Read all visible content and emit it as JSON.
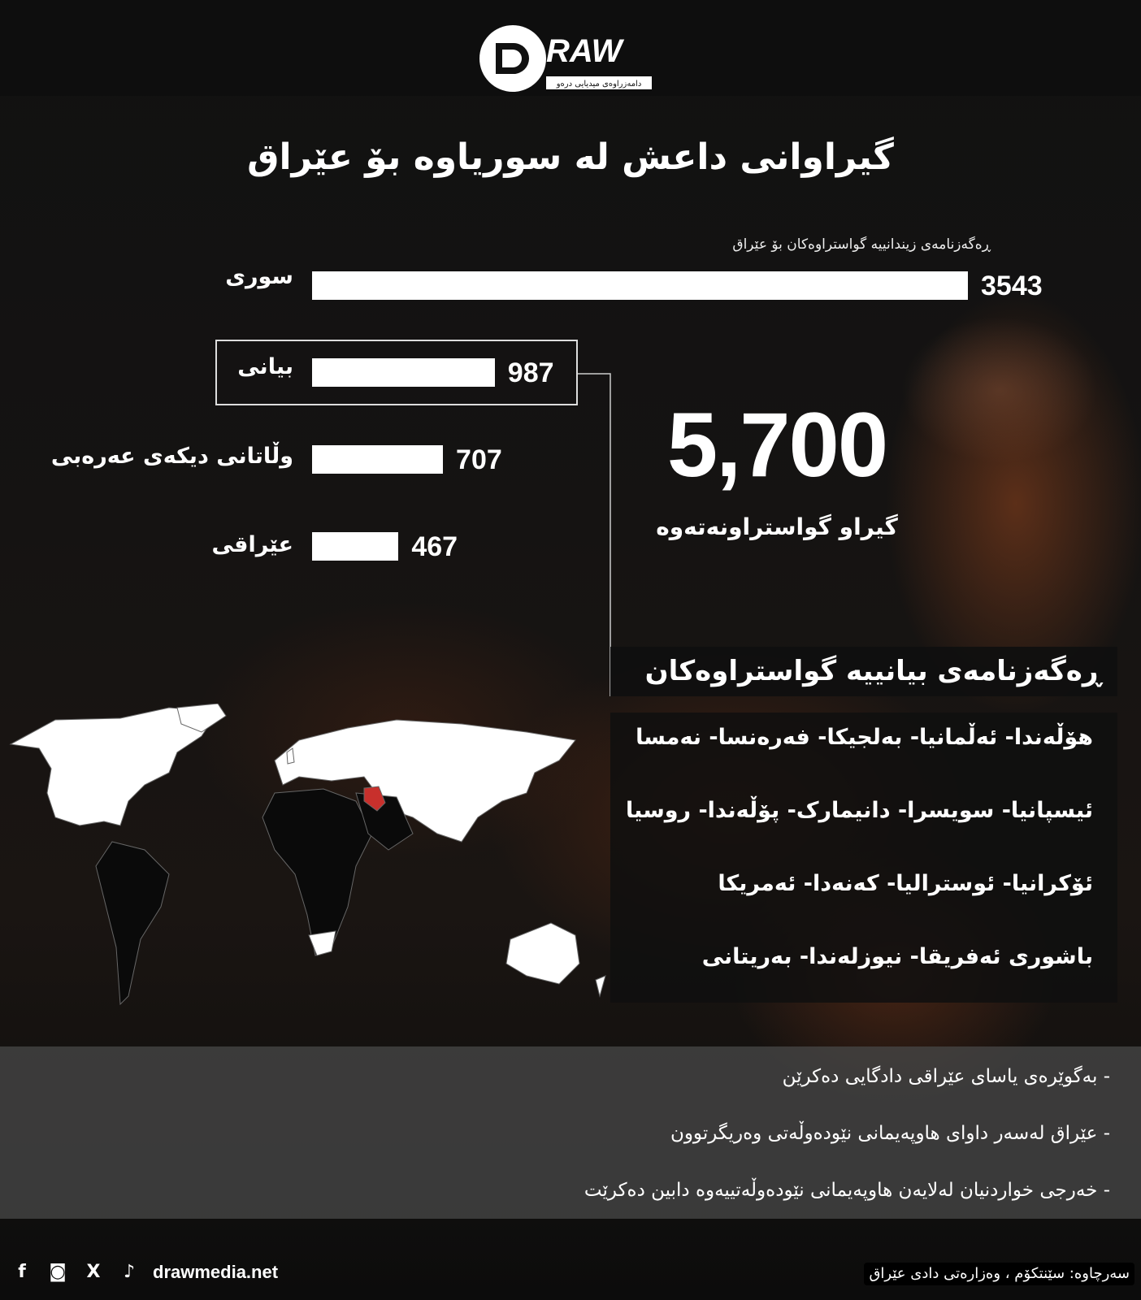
{
  "brand": {
    "logo_text": "DRAW",
    "logo_tagline": "دامەزراوەی میدیایی درەو"
  },
  "title": "گیراوانی داعش لە سوریاوە بۆ عێراق",
  "chart_data": {
    "type": "bar",
    "title": "ڕەگەزنامەی زیندانییە گواستراوەکان بۆ عێراق",
    "categories": [
      "سوری",
      "بیانی",
      "وڵاتانی دیکەی عەرەبی",
      "عێراقی"
    ],
    "values": [
      3543,
      987,
      707,
      467
    ],
    "value_labels": [
      "3543",
      "987",
      "707",
      "467"
    ],
    "bar_color": "#ffffff",
    "highlighted": "بیانی"
  },
  "total": {
    "value": "5,700",
    "label": "گیراو گواستراونەتەوە"
  },
  "foreign": {
    "heading": "ڕەگەزنامەی بیانییە گواستراوەکان",
    "rows": [
      "هۆڵەندا- ئەڵمانیا- بەلجیکا- فەرەنسا- نەمسا",
      "ئیسپانیا- سویسرا- دانیمارک- پۆڵەندا- روسیا",
      "ئۆکرانیا- ئوسترالیا- کەنەدا- ئەمریکا",
      "باشوری ئەفریقا- نیوزلەندا- بەریتانی"
    ]
  },
  "map": {
    "highlight_color": "#c8302c",
    "highlighted_country": "iraq"
  },
  "notes": [
    "- بەگوێرەی یاسای عێراقی دادگایی دەکرێن",
    "- عێراق لەسەر داوای هاوپەیمانی نێودەوڵەتی وەریگرتوون",
    "- خەرجی خواردنیان لەلایەن هاوپەیمانی نێودەوڵەتییەوە دابین دەکرێت"
  ],
  "footer": {
    "social": [
      "facebook-icon",
      "instagram-icon",
      "x-icon",
      "tiktok-icon"
    ],
    "website": "drawmedia.net",
    "source": "سەرچاوە: سێنتکۆم ، وەزارەتی دادی عێراق"
  }
}
